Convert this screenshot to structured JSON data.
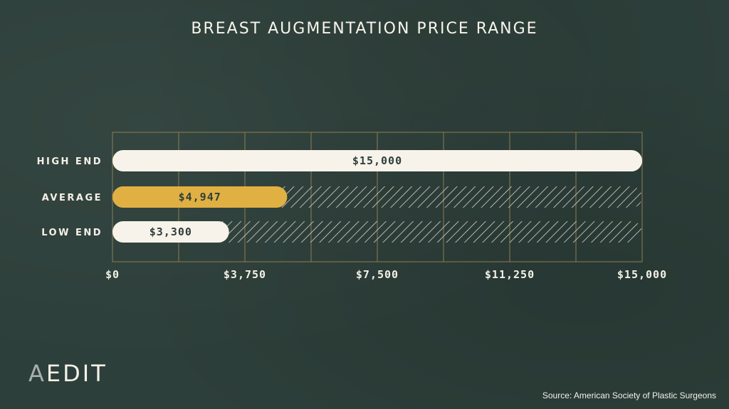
{
  "chart_data": {
    "type": "bar",
    "orientation": "horizontal",
    "title": "BREAST AUGMENTATION PRICE RANGE",
    "categories": [
      "HIGH END",
      "AVERAGE",
      "LOW END"
    ],
    "values": [
      15000,
      4947,
      3300
    ],
    "value_labels": [
      "$15,000",
      "$4,947",
      "$3,300"
    ],
    "xlim": [
      0,
      15000
    ],
    "x_ticks": [
      0,
      3750,
      7500,
      11250,
      15000
    ],
    "x_tick_labels": [
      "$0",
      "$3,750",
      "$7,500",
      "$11,250",
      "$15,000"
    ],
    "grid": true,
    "bar_colors": [
      "#f7f3ea",
      "#e1b042",
      "#f7f3ea"
    ],
    "remainder_style": "hatched",
    "grid_color": "#8c7d52"
  },
  "logo": {
    "first_letter": "A",
    "rest": "EDIT"
  },
  "source": "Source: American Society of Plastic Surgeons"
}
